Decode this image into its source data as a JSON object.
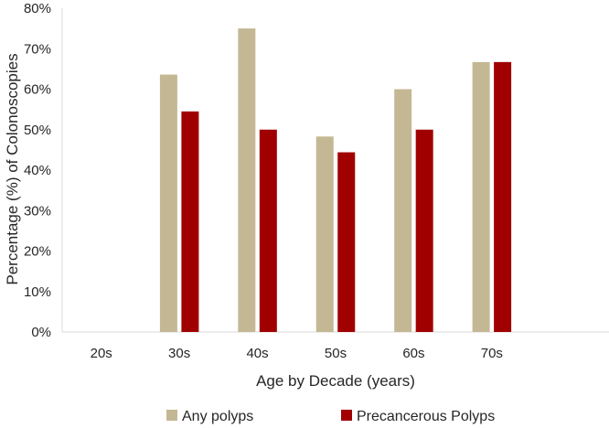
{
  "chart_data": {
    "type": "bar",
    "title": "",
    "xlabel": "Age by Decade (years)",
    "ylabel": "Percentage  (%) of Colonoscopies",
    "categories": [
      "20s",
      "30s",
      "40s",
      "50s",
      "60s",
      "70s",
      ""
    ],
    "ylim": [
      0,
      80
    ],
    "yticks": [
      0,
      10,
      20,
      30,
      40,
      50,
      60,
      70,
      80
    ],
    "ytick_labels": [
      "0%",
      "10%",
      "20%",
      "30%",
      "40%",
      "50%",
      "60%",
      "70%",
      "80%"
    ],
    "grid": false,
    "legend_position": "bottom",
    "series": [
      {
        "name": "Any polyps",
        "color": "#c4b894",
        "values": [
          null,
          63.6,
          75.0,
          48.3,
          60.0,
          66.7,
          null
        ]
      },
      {
        "name": "Precancerous Polyps",
        "color": "#a10000",
        "values": [
          null,
          54.5,
          50.0,
          44.4,
          50.0,
          66.7,
          null
        ]
      }
    ],
    "axis_color": "#d9d9d9"
  }
}
